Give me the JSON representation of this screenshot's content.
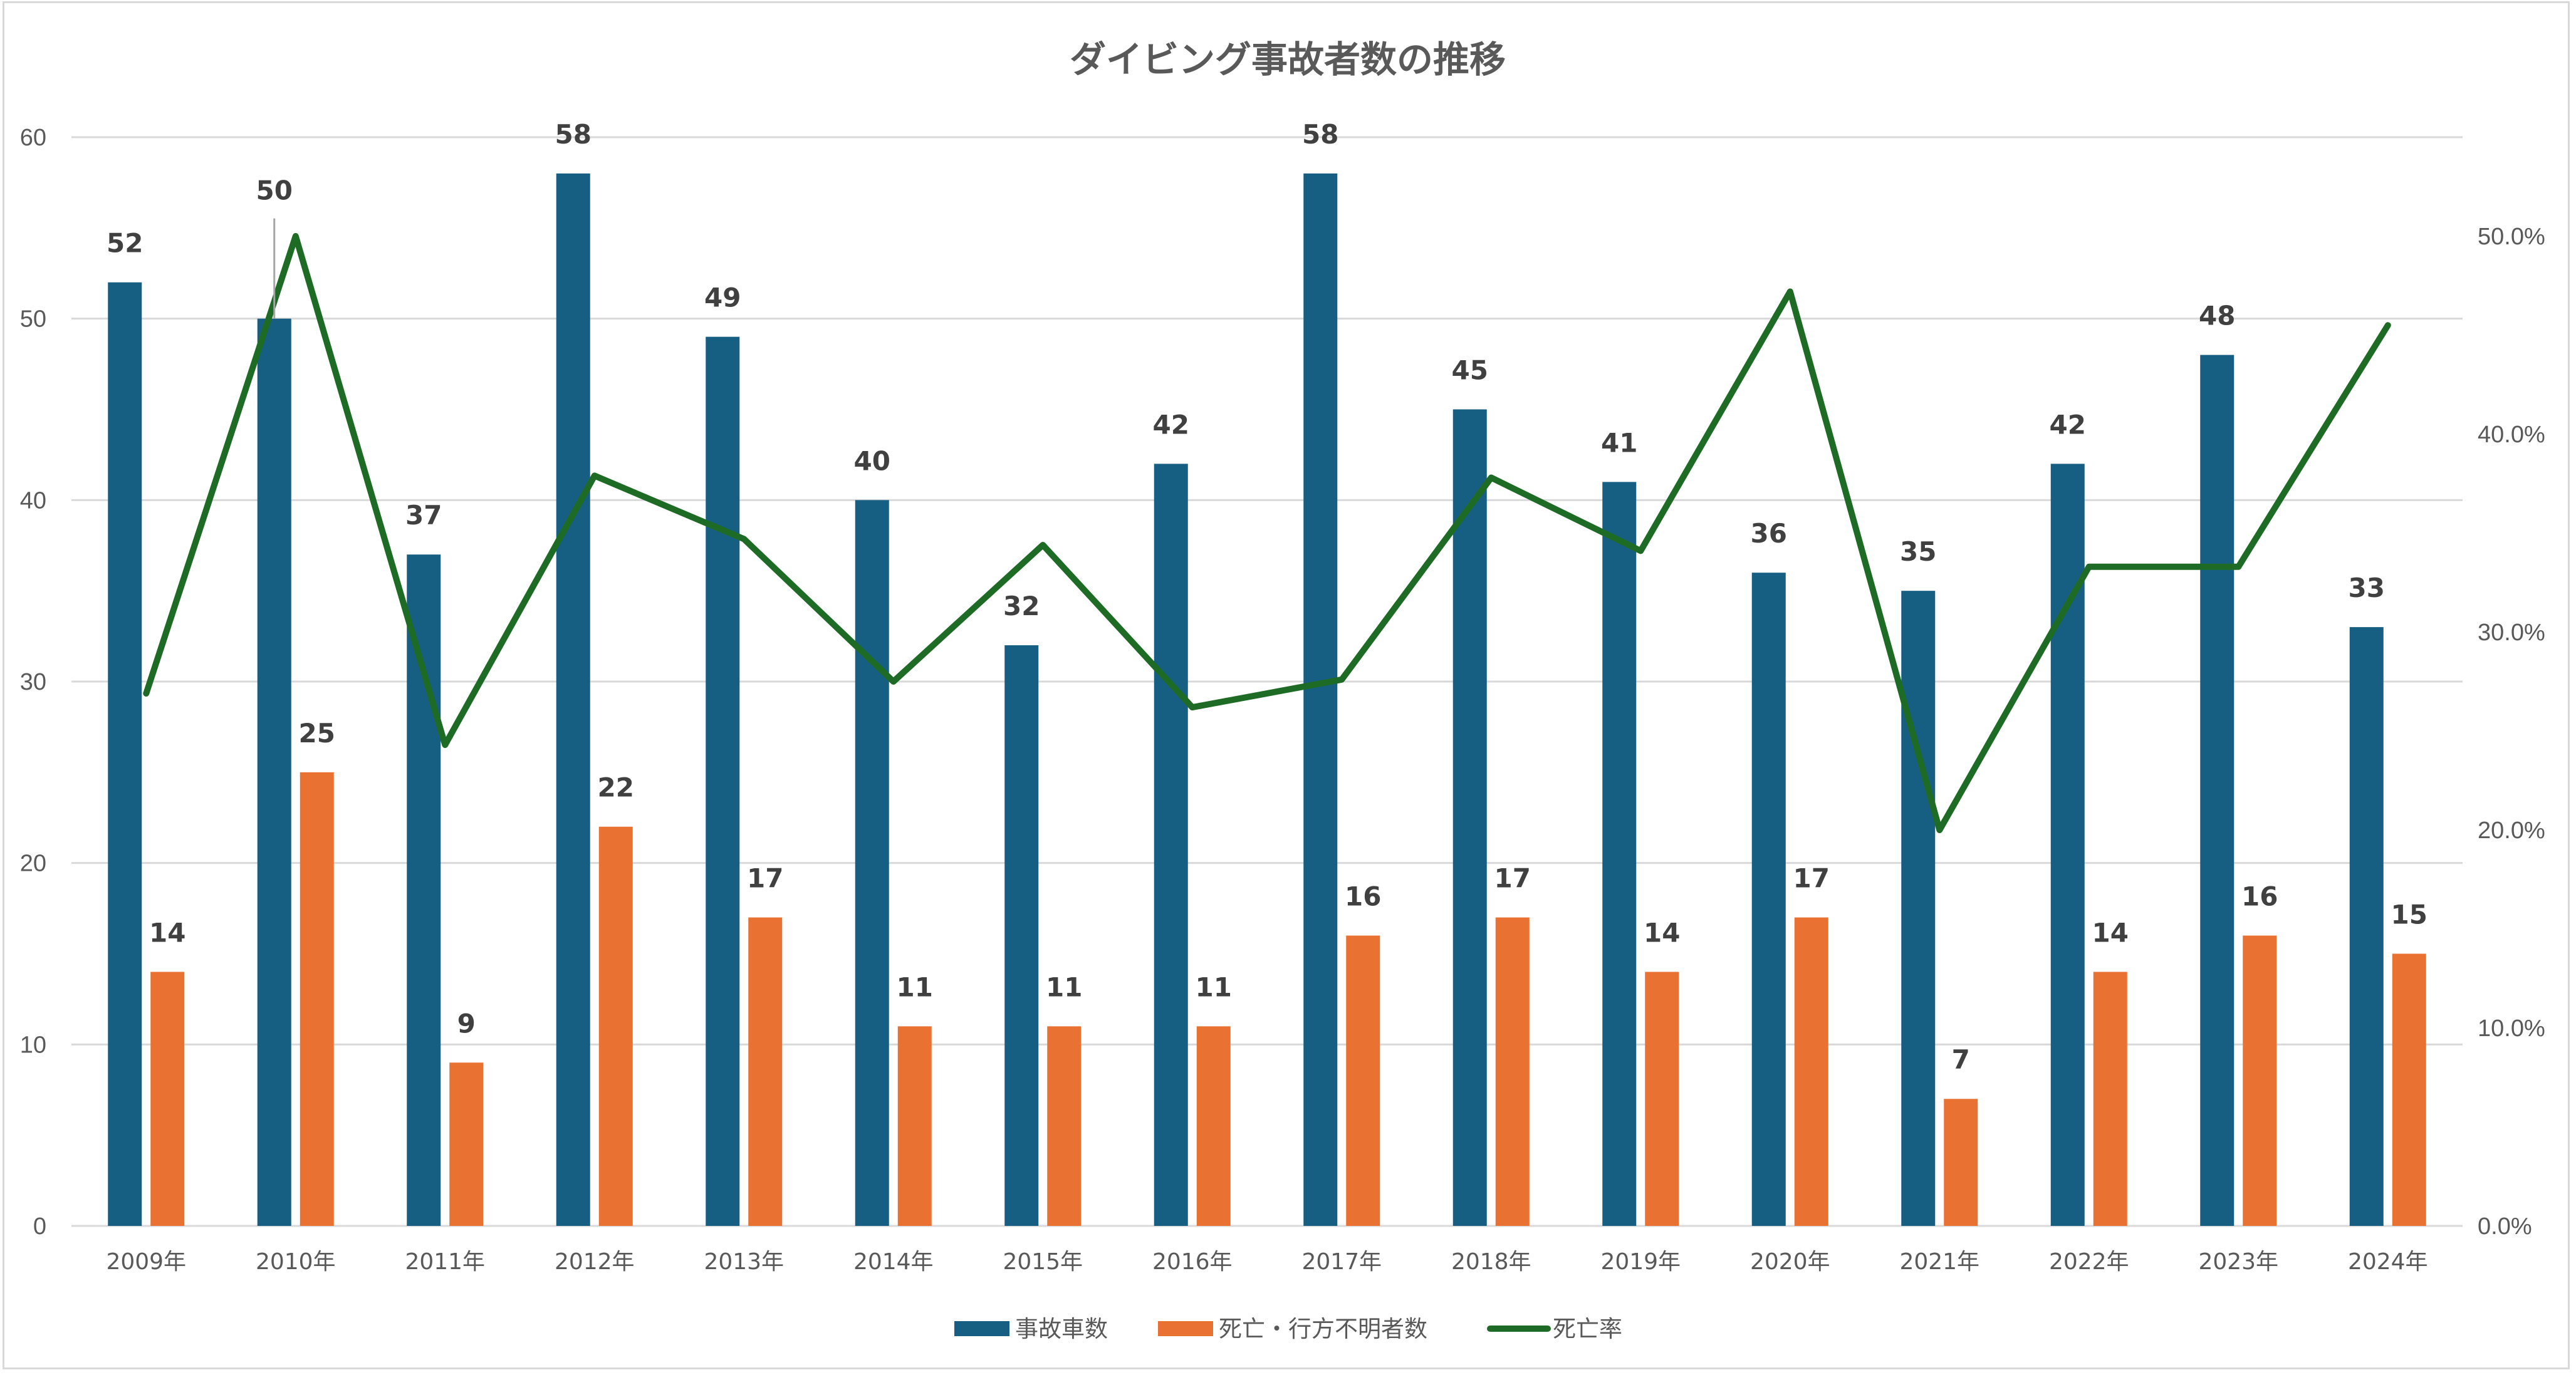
{
  "colors": {
    "accidents": "#175f82",
    "deaths": "#e97132",
    "rate": "#1d6b24",
    "grid": "#d9d9d9",
    "text": "#595959",
    "label": "#404040"
  },
  "chart_data": {
    "type": "bar",
    "title": "ダイビング事故者数の推移",
    "categories": [
      "2009年",
      "2010年",
      "2011年",
      "2012年",
      "2013年",
      "2014年",
      "2015年",
      "2016年",
      "2017年",
      "2018年",
      "2019年",
      "2020年",
      "2021年",
      "2022年",
      "2023年",
      "2024年"
    ],
    "series": [
      {
        "name": "事故車数",
        "type": "bar",
        "axis": "left",
        "values": [
          52,
          50,
          37,
          58,
          49,
          40,
          32,
          42,
          58,
          45,
          41,
          36,
          35,
          42,
          48,
          33
        ]
      },
      {
        "name": "死亡・行方不明者数",
        "type": "bar",
        "axis": "left",
        "values": [
          14,
          25,
          9,
          22,
          17,
          11,
          11,
          11,
          16,
          17,
          14,
          17,
          7,
          14,
          16,
          15
        ]
      },
      {
        "name": "死亡率",
        "type": "line",
        "axis": "right",
        "values": [
          26.9,
          50.0,
          24.3,
          37.9,
          34.7,
          27.5,
          34.4,
          26.2,
          27.6,
          37.8,
          34.1,
          47.2,
          20.0,
          33.3,
          33.3,
          45.5
        ]
      }
    ],
    "left_axis": {
      "ylim": [
        0,
        60
      ],
      "ticks": [
        "0",
        "10",
        "20",
        "30",
        "40",
        "50",
        "60"
      ]
    },
    "right_axis": {
      "ylim": [
        0,
        55
      ],
      "ticks": [
        "0.0%",
        "10.0%",
        "20.0%",
        "30.0%",
        "40.0%",
        "50.0%"
      ]
    },
    "data_labels": true,
    "grid": true,
    "legend": "bottom",
    "xlabel": "",
    "ylabel": ""
  }
}
